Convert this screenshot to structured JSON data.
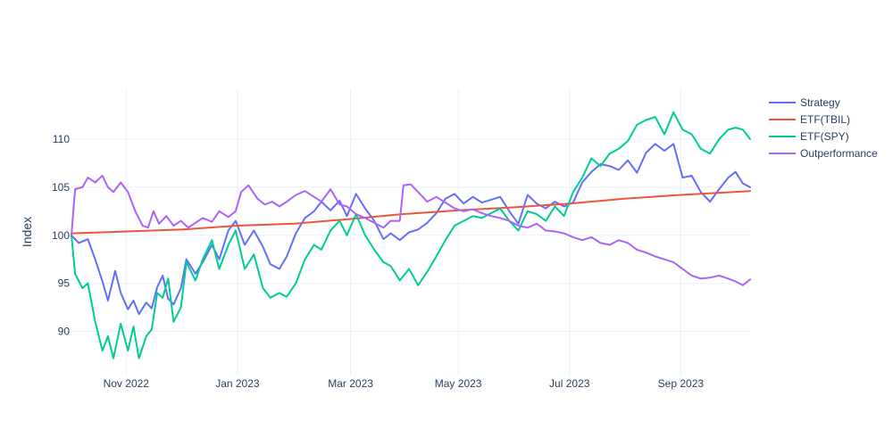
{
  "chart_data": {
    "type": "line",
    "ylabel": "Index",
    "xlabel": "",
    "title": "",
    "grid": true,
    "legend_position": "top-right",
    "x_start": "2022-09-01",
    "x_end": "2023-09-08",
    "ylim": [
      85.5,
      115.2
    ],
    "y_ticks": [
      90,
      95,
      100,
      105,
      110
    ],
    "x_ticks": [
      {
        "date": "2022-10-01",
        "label": "Nov 2022"
      },
      {
        "date": "2022-12-01",
        "label": "Jan 2023"
      },
      {
        "date": "2023-02-01",
        "label": "Mar 2023"
      },
      {
        "date": "2023-04-01",
        "label": "May 2023"
      },
      {
        "date": "2023-06-01",
        "label": "Jul 2023"
      },
      {
        "date": "2023-08-01",
        "label": "Sep 2023"
      }
    ],
    "series": [
      {
        "name": "Strategy",
        "color": "#636efa",
        "points": [
          [
            "2022-09-01",
            100.0
          ],
          [
            "2022-09-05",
            99.2
          ],
          [
            "2022-09-10",
            99.6
          ],
          [
            "2022-09-14",
            97.5
          ],
          [
            "2022-09-18",
            95.2
          ],
          [
            "2022-09-21",
            93.2
          ],
          [
            "2022-09-25",
            96.3
          ],
          [
            "2022-09-28",
            94.0
          ],
          [
            "2022-10-02",
            92.3
          ],
          [
            "2022-10-05",
            93.2
          ],
          [
            "2022-10-08",
            91.8
          ],
          [
            "2022-10-12",
            93.0
          ],
          [
            "2022-10-15",
            92.4
          ],
          [
            "2022-10-18",
            94.6
          ],
          [
            "2022-10-21",
            95.8
          ],
          [
            "2022-10-24",
            93.4
          ],
          [
            "2022-10-27",
            92.8
          ],
          [
            "2022-10-31",
            94.5
          ],
          [
            "2022-11-03",
            97.5
          ],
          [
            "2022-11-08",
            96.0
          ],
          [
            "2022-11-12",
            97.2
          ],
          [
            "2022-11-17",
            99.0
          ],
          [
            "2022-11-21",
            97.5
          ],
          [
            "2022-11-26",
            100.5
          ],
          [
            "2022-11-30",
            101.5
          ],
          [
            "2022-12-05",
            99.0
          ],
          [
            "2022-12-10",
            100.5
          ],
          [
            "2022-12-15",
            98.8
          ],
          [
            "2022-12-19",
            97.0
          ],
          [
            "2022-12-24",
            96.5
          ],
          [
            "2022-12-28",
            97.8
          ],
          [
            "2023-01-02",
            100.2
          ],
          [
            "2023-01-07",
            101.8
          ],
          [
            "2023-01-12",
            102.5
          ],
          [
            "2023-01-16",
            103.5
          ],
          [
            "2023-01-21",
            102.6
          ],
          [
            "2023-01-26",
            103.6
          ],
          [
            "2023-01-30",
            102.0
          ],
          [
            "2023-02-04",
            104.3
          ],
          [
            "2023-02-09",
            102.8
          ],
          [
            "2023-02-14",
            101.5
          ],
          [
            "2023-02-19",
            99.6
          ],
          [
            "2023-02-23",
            100.2
          ],
          [
            "2023-02-28",
            99.5
          ],
          [
            "2023-03-05",
            100.3
          ],
          [
            "2023-03-10",
            100.6
          ],
          [
            "2023-03-15",
            101.3
          ],
          [
            "2023-03-20",
            102.3
          ],
          [
            "2023-03-25",
            103.8
          ],
          [
            "2023-03-30",
            104.3
          ],
          [
            "2023-04-04",
            103.3
          ],
          [
            "2023-04-09",
            104.0
          ],
          [
            "2023-04-14",
            103.4
          ],
          [
            "2023-04-19",
            103.7
          ],
          [
            "2023-04-24",
            104.0
          ],
          [
            "2023-04-29",
            102.5
          ],
          [
            "2023-05-04",
            101.2
          ],
          [
            "2023-05-09",
            104.2
          ],
          [
            "2023-05-14",
            103.3
          ],
          [
            "2023-05-19",
            102.8
          ],
          [
            "2023-05-24",
            103.5
          ],
          [
            "2023-05-29",
            103.0
          ],
          [
            "2023-06-03",
            103.4
          ],
          [
            "2023-06-08",
            105.5
          ],
          [
            "2023-06-13",
            106.6
          ],
          [
            "2023-06-18",
            107.4
          ],
          [
            "2023-06-23",
            107.2
          ],
          [
            "2023-06-28",
            106.8
          ],
          [
            "2023-07-03",
            107.8
          ],
          [
            "2023-07-08",
            106.5
          ],
          [
            "2023-07-13",
            108.6
          ],
          [
            "2023-07-18",
            109.5
          ],
          [
            "2023-07-23",
            108.8
          ],
          [
            "2023-07-28",
            109.5
          ],
          [
            "2023-08-02",
            106.0
          ],
          [
            "2023-08-07",
            106.2
          ],
          [
            "2023-08-12",
            104.5
          ],
          [
            "2023-08-17",
            103.5
          ],
          [
            "2023-08-22",
            104.8
          ],
          [
            "2023-08-27",
            106.0
          ],
          [
            "2023-08-31",
            106.6
          ],
          [
            "2023-09-04",
            105.4
          ],
          [
            "2023-09-08",
            105.0
          ]
        ]
      },
      {
        "name": "ETF(TBIL)",
        "color": "#ef553b",
        "points": [
          [
            "2022-09-01",
            100.2
          ],
          [
            "2022-10-01",
            100.4
          ],
          [
            "2022-11-01",
            100.6
          ],
          [
            "2022-12-01",
            101.0
          ],
          [
            "2023-01-01",
            101.2
          ],
          [
            "2023-02-01",
            101.7
          ],
          [
            "2023-03-01",
            102.2
          ],
          [
            "2023-04-01",
            102.6
          ],
          [
            "2023-05-01",
            102.9
          ],
          [
            "2023-06-01",
            103.3
          ],
          [
            "2023-07-01",
            103.8
          ],
          [
            "2023-08-01",
            104.2
          ],
          [
            "2023-09-08",
            104.6
          ]
        ]
      },
      {
        "name": "ETF(SPY)",
        "color": "#00cc96",
        "points": [
          [
            "2022-09-01",
            100.0
          ],
          [
            "2022-09-03",
            96.0
          ],
          [
            "2022-09-07",
            94.5
          ],
          [
            "2022-09-10",
            95.0
          ],
          [
            "2022-09-14",
            91.0
          ],
          [
            "2022-09-18",
            88.0
          ],
          [
            "2022-09-21",
            89.5
          ],
          [
            "2022-09-24",
            87.2
          ],
          [
            "2022-09-28",
            90.8
          ],
          [
            "2022-10-02",
            88.0
          ],
          [
            "2022-10-05",
            90.5
          ],
          [
            "2022-10-08",
            87.2
          ],
          [
            "2022-10-12",
            89.5
          ],
          [
            "2022-10-15",
            90.2
          ],
          [
            "2022-10-18",
            94.0
          ],
          [
            "2022-10-21",
            93.5
          ],
          [
            "2022-10-24",
            95.5
          ],
          [
            "2022-10-27",
            91.0
          ],
          [
            "2022-10-31",
            92.5
          ],
          [
            "2022-11-03",
            97.2
          ],
          [
            "2022-11-08",
            95.3
          ],
          [
            "2022-11-12",
            97.5
          ],
          [
            "2022-11-17",
            99.5
          ],
          [
            "2022-11-21",
            96.5
          ],
          [
            "2022-11-26",
            99.0
          ],
          [
            "2022-11-30",
            100.5
          ],
          [
            "2022-12-05",
            96.5
          ],
          [
            "2022-12-10",
            98.0
          ],
          [
            "2022-12-15",
            94.5
          ],
          [
            "2022-12-19",
            93.5
          ],
          [
            "2022-12-24",
            94.0
          ],
          [
            "2022-12-28",
            93.6
          ],
          [
            "2023-01-02",
            95.0
          ],
          [
            "2023-01-07",
            97.5
          ],
          [
            "2023-01-12",
            99.0
          ],
          [
            "2023-01-16",
            98.5
          ],
          [
            "2023-01-21",
            100.5
          ],
          [
            "2023-01-26",
            101.5
          ],
          [
            "2023-01-30",
            100.0
          ],
          [
            "2023-02-04",
            102.2
          ],
          [
            "2023-02-09",
            100.0
          ],
          [
            "2023-02-14",
            98.5
          ],
          [
            "2023-02-19",
            97.2
          ],
          [
            "2023-02-23",
            96.8
          ],
          [
            "2023-02-28",
            95.3
          ],
          [
            "2023-03-05",
            96.5
          ],
          [
            "2023-03-10",
            94.8
          ],
          [
            "2023-03-15",
            96.2
          ],
          [
            "2023-03-20",
            97.8
          ],
          [
            "2023-03-25",
            99.5
          ],
          [
            "2023-03-30",
            101.0
          ],
          [
            "2023-04-04",
            101.5
          ],
          [
            "2023-04-09",
            102.0
          ],
          [
            "2023-04-14",
            101.8
          ],
          [
            "2023-04-19",
            102.3
          ],
          [
            "2023-04-24",
            102.8
          ],
          [
            "2023-04-29",
            101.5
          ],
          [
            "2023-05-04",
            100.5
          ],
          [
            "2023-05-09",
            102.5
          ],
          [
            "2023-05-14",
            102.2
          ],
          [
            "2023-05-19",
            101.5
          ],
          [
            "2023-05-24",
            103.0
          ],
          [
            "2023-05-29",
            102.0
          ],
          [
            "2023-06-03",
            104.5
          ],
          [
            "2023-06-08",
            106.0
          ],
          [
            "2023-06-13",
            108.0
          ],
          [
            "2023-06-18",
            107.2
          ],
          [
            "2023-06-23",
            108.5
          ],
          [
            "2023-06-28",
            109.0
          ],
          [
            "2023-07-03",
            109.8
          ],
          [
            "2023-07-08",
            111.5
          ],
          [
            "2023-07-13",
            112.0
          ],
          [
            "2023-07-18",
            112.3
          ],
          [
            "2023-07-23",
            110.5
          ],
          [
            "2023-07-28",
            112.8
          ],
          [
            "2023-08-02",
            111.0
          ],
          [
            "2023-08-07",
            110.5
          ],
          [
            "2023-08-12",
            109.0
          ],
          [
            "2023-08-17",
            108.5
          ],
          [
            "2023-08-22",
            110.0
          ],
          [
            "2023-08-27",
            111.0
          ],
          [
            "2023-08-31",
            111.2
          ],
          [
            "2023-09-04",
            111.0
          ],
          [
            "2023-09-08",
            110.0
          ]
        ]
      },
      {
        "name": "Outperformance",
        "color": "#ab63fa",
        "points": [
          [
            "2022-09-01",
            100.0
          ],
          [
            "2022-09-03",
            104.8
          ],
          [
            "2022-09-07",
            105.0
          ],
          [
            "2022-09-10",
            106.0
          ],
          [
            "2022-09-14",
            105.5
          ],
          [
            "2022-09-18",
            106.2
          ],
          [
            "2022-09-21",
            105.0
          ],
          [
            "2022-09-24",
            104.5
          ],
          [
            "2022-09-28",
            105.5
          ],
          [
            "2022-10-02",
            104.5
          ],
          [
            "2022-10-06",
            102.5
          ],
          [
            "2022-10-10",
            101.0
          ],
          [
            "2022-10-13",
            100.8
          ],
          [
            "2022-10-16",
            102.5
          ],
          [
            "2022-10-19",
            101.2
          ],
          [
            "2022-10-23",
            102.0
          ],
          [
            "2022-10-27",
            101.0
          ],
          [
            "2022-10-31",
            101.5
          ],
          [
            "2022-11-04",
            100.8
          ],
          [
            "2022-11-08",
            101.3
          ],
          [
            "2022-11-12",
            101.8
          ],
          [
            "2022-11-17",
            101.4
          ],
          [
            "2022-11-21",
            102.5
          ],
          [
            "2022-11-26",
            101.9
          ],
          [
            "2022-11-30",
            102.5
          ],
          [
            "2022-12-03",
            104.5
          ],
          [
            "2022-12-07",
            105.2
          ],
          [
            "2022-12-12",
            103.8
          ],
          [
            "2022-12-16",
            103.2
          ],
          [
            "2022-12-20",
            103.5
          ],
          [
            "2022-12-24",
            103.0
          ],
          [
            "2022-12-28",
            103.5
          ],
          [
            "2023-01-02",
            104.2
          ],
          [
            "2023-01-07",
            104.6
          ],
          [
            "2023-01-12",
            104.0
          ],
          [
            "2023-01-16",
            103.5
          ],
          [
            "2023-01-21",
            104.8
          ],
          [
            "2023-01-26",
            103.2
          ],
          [
            "2023-01-30",
            103.0
          ],
          [
            "2023-02-04",
            102.2
          ],
          [
            "2023-02-09",
            101.8
          ],
          [
            "2023-02-14",
            101.3
          ],
          [
            "2023-02-19",
            100.8
          ],
          [
            "2023-02-23",
            101.5
          ],
          [
            "2023-02-28",
            101.5
          ],
          [
            "2023-03-02",
            105.2
          ],
          [
            "2023-03-06",
            105.3
          ],
          [
            "2023-03-10",
            104.5
          ],
          [
            "2023-03-15",
            103.5
          ],
          [
            "2023-03-20",
            104.0
          ],
          [
            "2023-03-25",
            103.4
          ],
          [
            "2023-03-30",
            102.8
          ],
          [
            "2023-04-04",
            102.5
          ],
          [
            "2023-04-09",
            102.7
          ],
          [
            "2023-04-14",
            102.3
          ],
          [
            "2023-04-19",
            102.0
          ],
          [
            "2023-04-24",
            101.8
          ],
          [
            "2023-04-29",
            101.5
          ],
          [
            "2023-05-04",
            101.0
          ],
          [
            "2023-05-09",
            100.8
          ],
          [
            "2023-05-14",
            101.2
          ],
          [
            "2023-05-19",
            100.5
          ],
          [
            "2023-05-24",
            100.4
          ],
          [
            "2023-05-29",
            100.2
          ],
          [
            "2023-06-03",
            99.8
          ],
          [
            "2023-06-08",
            99.5
          ],
          [
            "2023-06-13",
            99.8
          ],
          [
            "2023-06-18",
            99.2
          ],
          [
            "2023-06-23",
            99.0
          ],
          [
            "2023-06-28",
            99.5
          ],
          [
            "2023-07-03",
            99.2
          ],
          [
            "2023-07-08",
            98.5
          ],
          [
            "2023-07-13",
            98.2
          ],
          [
            "2023-07-18",
            97.8
          ],
          [
            "2023-07-23",
            97.5
          ],
          [
            "2023-07-28",
            97.2
          ],
          [
            "2023-08-02",
            96.5
          ],
          [
            "2023-08-07",
            95.8
          ],
          [
            "2023-08-12",
            95.5
          ],
          [
            "2023-08-17",
            95.6
          ],
          [
            "2023-08-22",
            95.8
          ],
          [
            "2023-08-27",
            95.5
          ],
          [
            "2023-08-31",
            95.2
          ],
          [
            "2023-09-04",
            94.8
          ],
          [
            "2023-09-08",
            95.4
          ]
        ]
      }
    ]
  }
}
